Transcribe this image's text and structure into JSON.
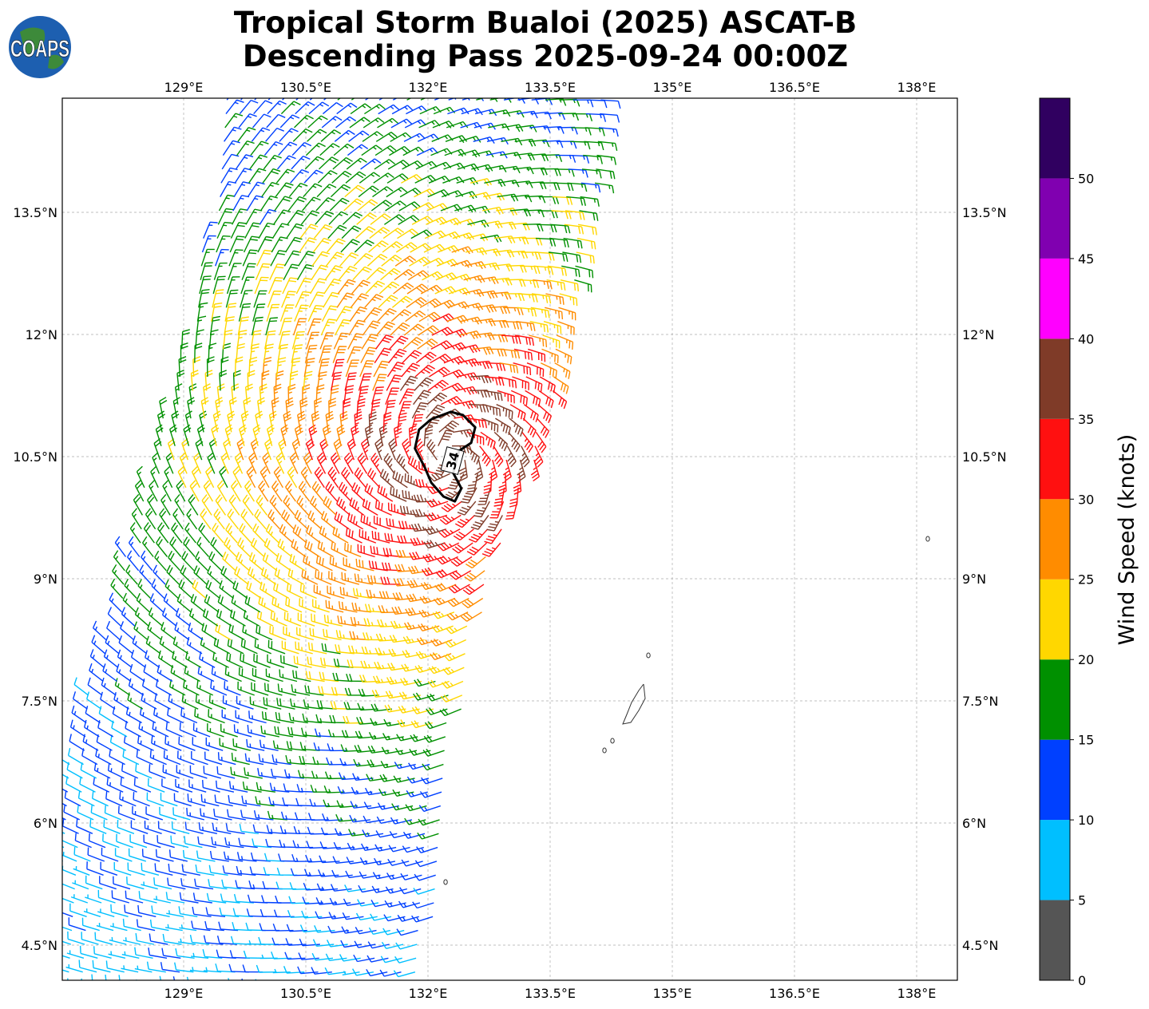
{
  "logo": {
    "text": "COAPS"
  },
  "chart_data": {
    "type": "barbs",
    "title": [
      "Tropical Storm Bualoi (2025) ASCAT-B",
      "Descending Pass 2025-09-24 00:00Z"
    ],
    "xlim": [
      127.5,
      138.5
    ],
    "ylim": [
      4.1,
      14.9
    ],
    "grid": true,
    "x_ticks": [
      {
        "value": 129,
        "label": "129°E"
      },
      {
        "value": 130.5,
        "label": "130.5°E"
      },
      {
        "value": 132,
        "label": "132°E"
      },
      {
        "value": 133.5,
        "label": "133.5°E"
      },
      {
        "value": 135,
        "label": "135°E"
      },
      {
        "value": 136.5,
        "label": "136.5°E"
      },
      {
        "value": 138,
        "label": "138°E"
      }
    ],
    "y_ticks": [
      {
        "value": 13.5,
        "label": "13.5°N"
      },
      {
        "value": 12,
        "label": "12°N"
      },
      {
        "value": 10.5,
        "label": "10.5°N"
      },
      {
        "value": 9,
        "label": "9°N"
      },
      {
        "value": 7.5,
        "label": "7.5°N"
      },
      {
        "value": 6,
        "label": "6°N"
      },
      {
        "value": 4.5,
        "label": "4.5°N"
      }
    ],
    "storm_center": [
      132.25,
      10.5
    ],
    "max_wind_kt": 36,
    "swath_polygon": [
      [
        129.54,
        14.95
      ],
      [
        129.1,
        12.38
      ],
      [
        128.02,
        8.26
      ],
      [
        127.45,
        6.21
      ],
      [
        127.45,
        4.0
      ],
      [
        131.84,
        4.0
      ],
      [
        132.24,
        5.32
      ],
      [
        132.33,
        6.99
      ],
      [
        132.82,
        9.25
      ],
      [
        133.41,
        10.62
      ],
      [
        133.8,
        12.68
      ],
      [
        134.29,
        14.95
      ]
    ],
    "contour_34kt": {
      "label": "34",
      "label_position": [
        132.3,
        10.45
      ],
      "points": [
        [
          132.04,
          10.96
        ],
        [
          132.28,
          11.05
        ],
        [
          132.43,
          11.01
        ],
        [
          132.58,
          10.86
        ],
        [
          132.53,
          10.67
        ],
        [
          132.38,
          10.57
        ],
        [
          132.31,
          10.3
        ],
        [
          132.41,
          10.11
        ],
        [
          132.33,
          9.95
        ],
        [
          132.19,
          10.01
        ],
        [
          132.04,
          10.18
        ],
        [
          131.96,
          10.37
        ],
        [
          131.84,
          10.6
        ],
        [
          131.89,
          10.83
        ],
        [
          132.04,
          10.96
        ]
      ]
    },
    "islands": {
      "palau": [
        [
          134.647,
          7.706
        ],
        [
          134.667,
          7.529
        ],
        [
          134.588,
          7.382
        ],
        [
          134.49,
          7.235
        ],
        [
          134.392,
          7.216
        ],
        [
          134.441,
          7.333
        ],
        [
          134.5,
          7.48
        ],
        [
          134.588,
          7.627
        ],
        [
          134.647,
          7.706
        ]
      ],
      "small": [
        [
          134.706,
          8.059
        ],
        [
          134.167,
          6.892
        ],
        [
          134.265,
          7.01
        ],
        [
          138.137,
          9.49
        ],
        [
          132.216,
          5.275
        ]
      ]
    },
    "colorbar": {
      "label": "Wind Speed (knots)",
      "range": [
        0,
        55
      ],
      "bins": [
        {
          "min": 0,
          "max": 5,
          "color": "#555555"
        },
        {
          "min": 5,
          "max": 10,
          "color": "#00bfff"
        },
        {
          "min": 10,
          "max": 15,
          "color": "#0040ff"
        },
        {
          "min": 15,
          "max": 20,
          "color": "#009000"
        },
        {
          "min": 20,
          "max": 25,
          "color": "#ffd700"
        },
        {
          "min": 25,
          "max": 30,
          "color": "#ff8c00"
        },
        {
          "min": 30,
          "max": 35,
          "color": "#ff1010"
        },
        {
          "min": 35,
          "max": 40,
          "color": "#7f3b28"
        },
        {
          "min": 40,
          "max": 45,
          "color": "#ff00ff"
        },
        {
          "min": 45,
          "max": 50,
          "color": "#8000b0"
        },
        {
          "min": 50,
          "max": 55,
          "color": "#300060"
        }
      ],
      "ticks": [
        "0",
        "5",
        "10",
        "15",
        "20",
        "25",
        "30",
        "35",
        "40",
        "45",
        "50"
      ]
    }
  }
}
